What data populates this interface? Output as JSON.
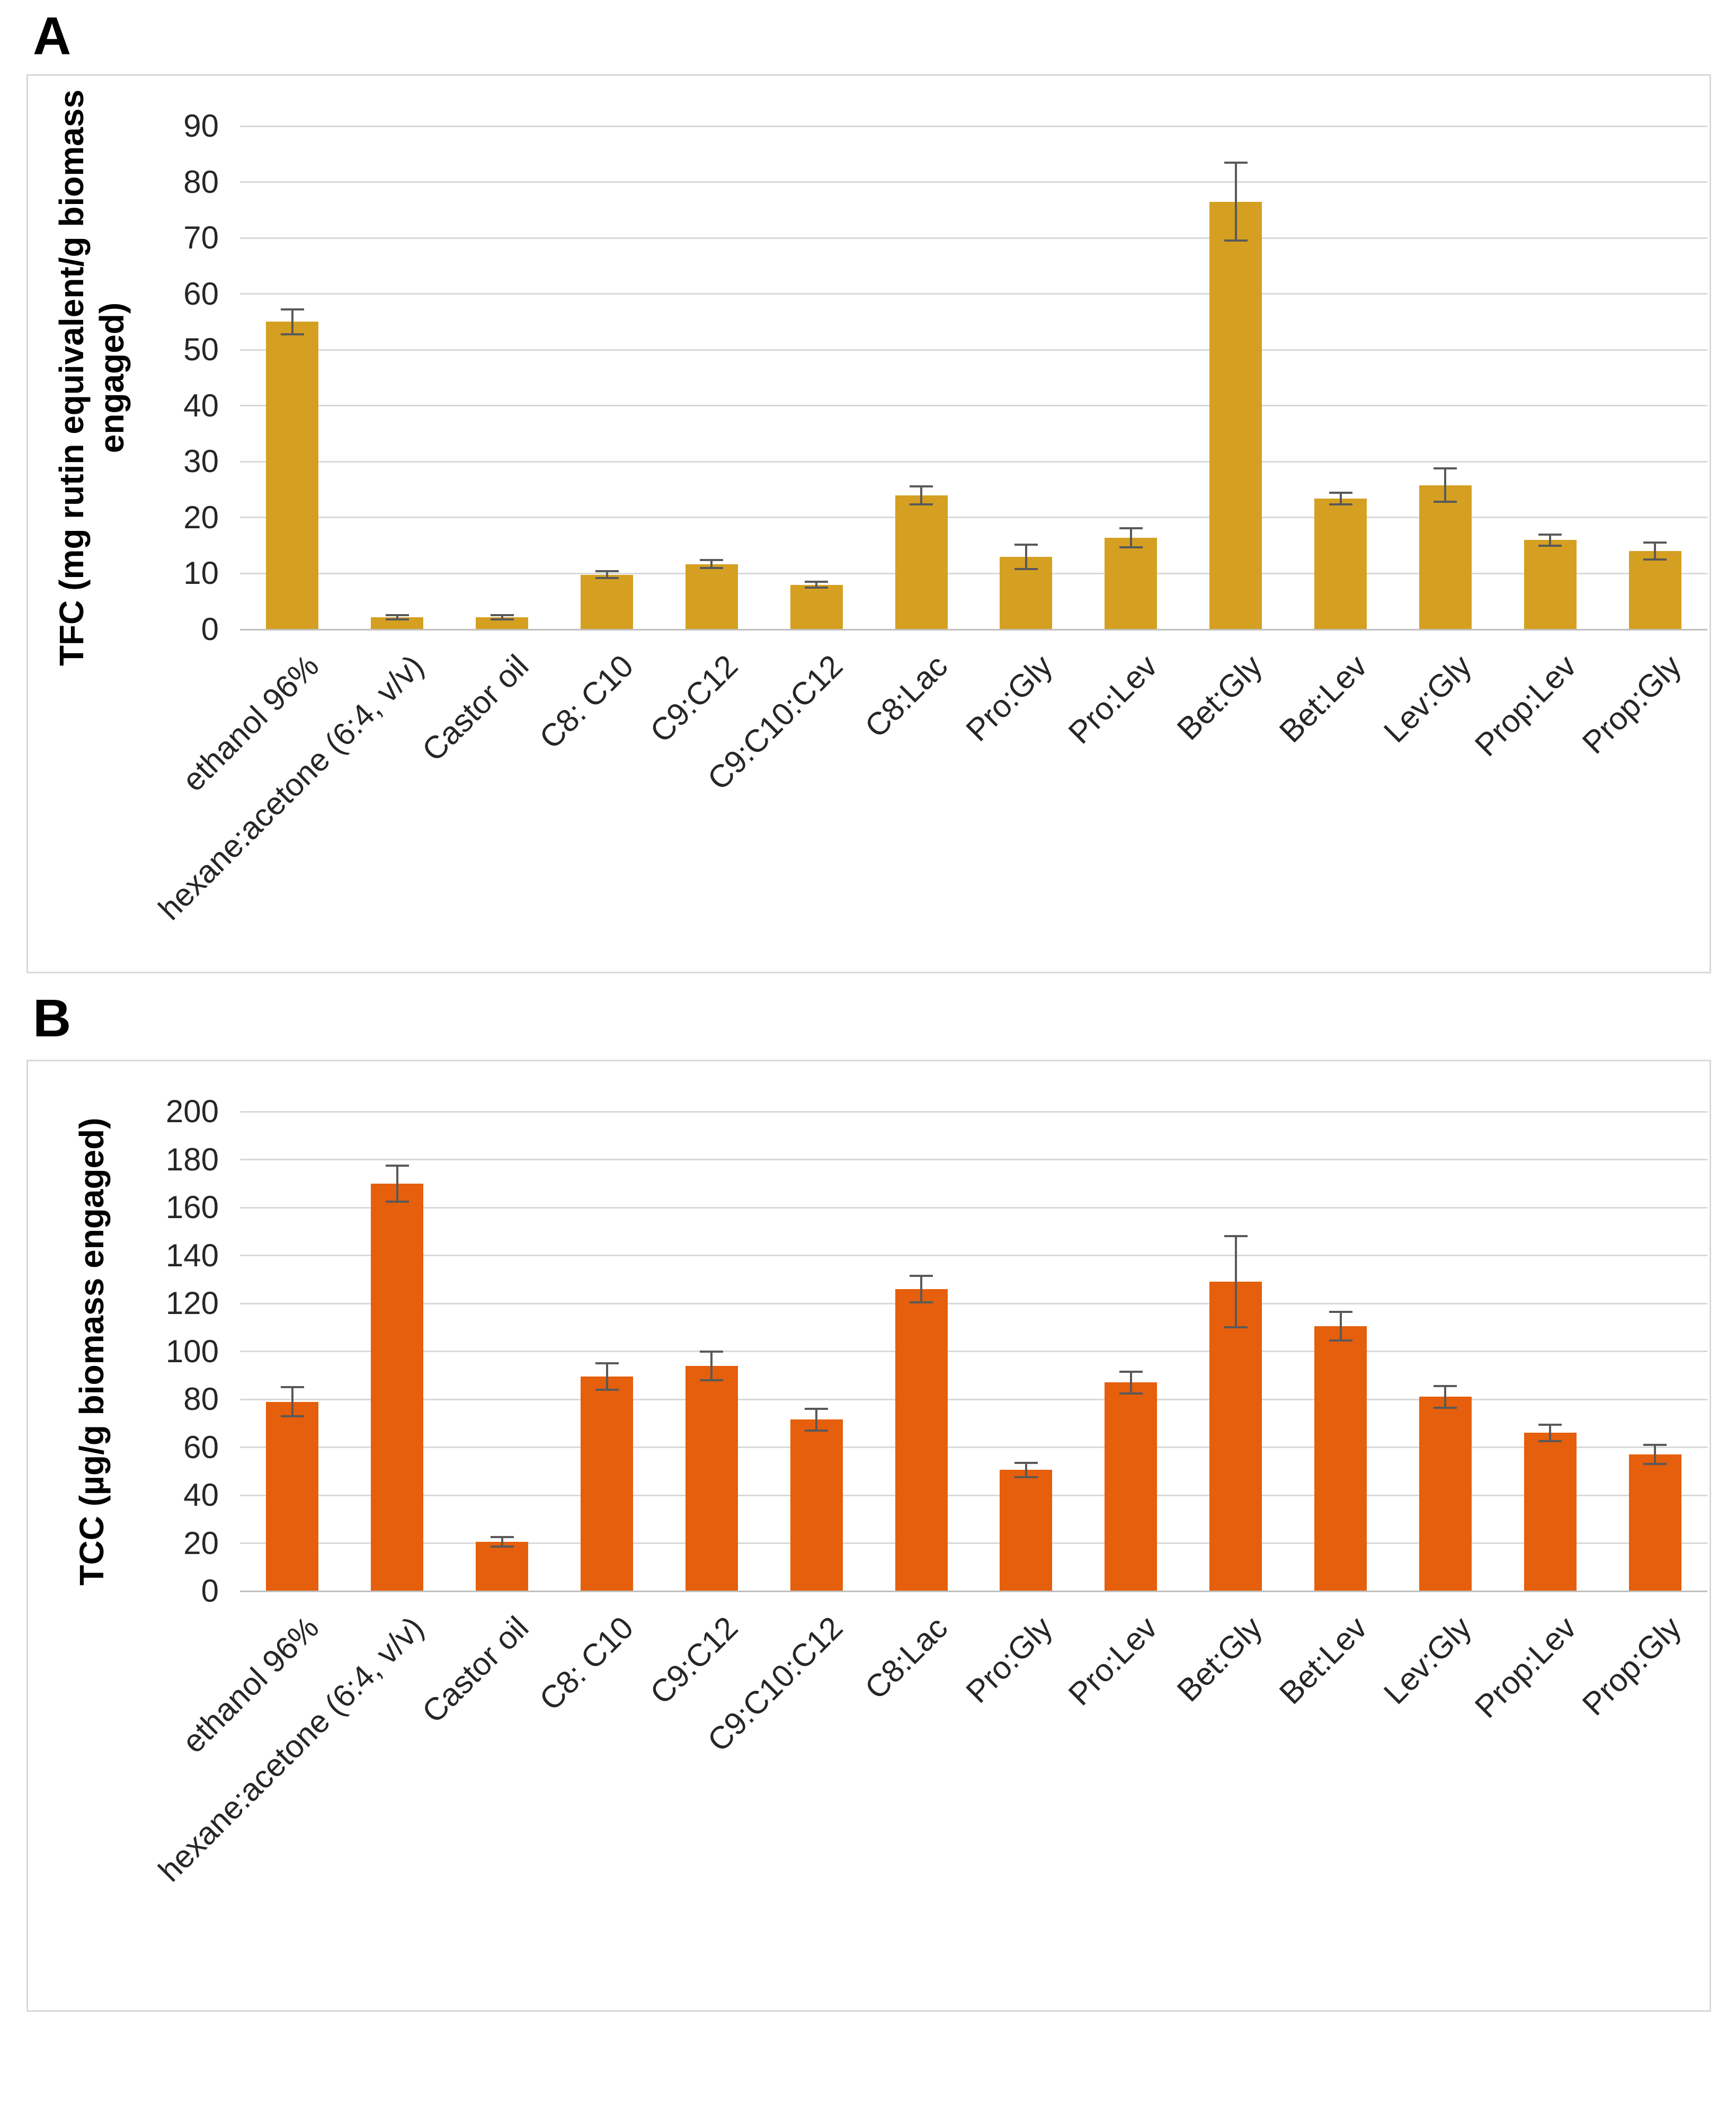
{
  "figure": {
    "panel_a_label": "A",
    "panel_b_label": "B"
  },
  "colors": {
    "panel_border": "#d9d9d9",
    "gridline": "#d9d9d9",
    "axis_line": "#bfbfbf",
    "error_bar": "#595959",
    "bar_gold": "#d5a021",
    "bar_orange": "#e55f0c",
    "text": "#262626"
  },
  "chart_data": [
    {
      "type": "bar",
      "panel": "A",
      "title": "",
      "xlabel": "",
      "ylabel": "TFC (mg rutin equivalent/g biomass engaged)",
      "ylabel_lines": [
        "TFC (mg rutin equivalent/g biomass",
        "engaged)"
      ],
      "ylim": [
        0,
        90
      ],
      "yticks": [
        0,
        10,
        20,
        30,
        40,
        50,
        60,
        70,
        80,
        90
      ],
      "grid": true,
      "legend": false,
      "bar_color": "#d5a021",
      "categories": [
        "ethanol 96%",
        "hexane:acetone (6:4, v/v)",
        "Castor oil",
        "C8: C10",
        "C9:C12",
        "C9:C10:C12",
        "C8:Lac",
        "Pro:Gly",
        "Pro:Lev",
        "Bet:Gly",
        "Bet:Lev",
        "Lev:Gly",
        "Prop:Lev",
        "Prop:Gly"
      ],
      "values": [
        55,
        2.2,
        2.2,
        9.8,
        11.7,
        8,
        24,
        13,
        16.4,
        76.5,
        23.4,
        25.8,
        16,
        14
      ],
      "errors": [
        2.2,
        0.4,
        0.4,
        0.6,
        0.7,
        0.5,
        1.6,
        2.2,
        1.7,
        7,
        1,
        3,
        1,
        1.5
      ]
    },
    {
      "type": "bar",
      "panel": "B",
      "title": "",
      "xlabel": "",
      "ylabel": "TCC (µg/g biomass engaged)",
      "ylabel_lines": [
        "TCC (µg/g biomass engaged)"
      ],
      "ylim": [
        0,
        200
      ],
      "yticks": [
        0,
        20,
        40,
        60,
        80,
        100,
        120,
        140,
        160,
        180,
        200
      ],
      "grid": true,
      "legend": false,
      "bar_color": "#e55f0c",
      "categories": [
        "ethanol 96%",
        "hexane:acetone (6:4, v/v)",
        "Castor oil",
        "C8: C10",
        "C9:C12",
        "C9:C10:C12",
        "C8:Lac",
        "Pro:Gly",
        "Pro:Lev",
        "Bet:Gly",
        "Bet:Lev",
        "Lev:Gly",
        "Prop:Lev",
        "Prop:Gly"
      ],
      "values": [
        79,
        170,
        20.5,
        89.5,
        94,
        71.5,
        126,
        50.5,
        87,
        129,
        110.5,
        81,
        66,
        57
      ],
      "errors": [
        6,
        7.5,
        2,
        5.5,
        6,
        4.5,
        5.5,
        3,
        4.5,
        19,
        6,
        4.5,
        3.5,
        4
      ]
    }
  ]
}
